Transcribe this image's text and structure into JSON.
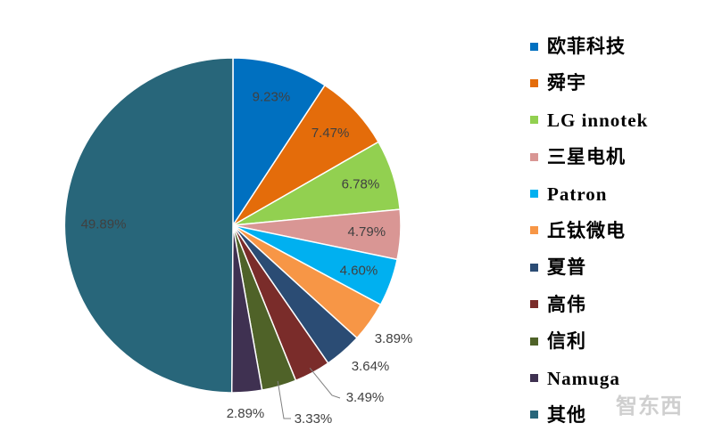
{
  "chart_data": {
    "type": "pie",
    "categories": [
      "欧菲科技",
      "舜宇",
      "LG innotek",
      "三星电机",
      "Patron",
      "丘钛微电",
      "夏普",
      "高伟",
      "信利",
      "Namuga",
      "其他"
    ],
    "values": [
      9.23,
      7.47,
      6.78,
      4.79,
      4.6,
      3.89,
      3.64,
      3.49,
      3.33,
      2.89,
      49.89
    ],
    "labels": [
      "9.23%",
      "7.47%",
      "6.78%",
      "4.79%",
      "4.60%",
      "3.89%",
      "3.64%",
      "3.49%",
      "3.33%",
      "2.89%",
      "49.89%"
    ],
    "colors": [
      "#0070C0",
      "#E46C0A",
      "#92D050",
      "#D99694",
      "#00B0F0",
      "#F79646",
      "#2B4C74",
      "#7A2C2A",
      "#4F6228",
      "#3F3151",
      "#28667A"
    ],
    "legend_position": "right"
  },
  "watermark": "智东西"
}
